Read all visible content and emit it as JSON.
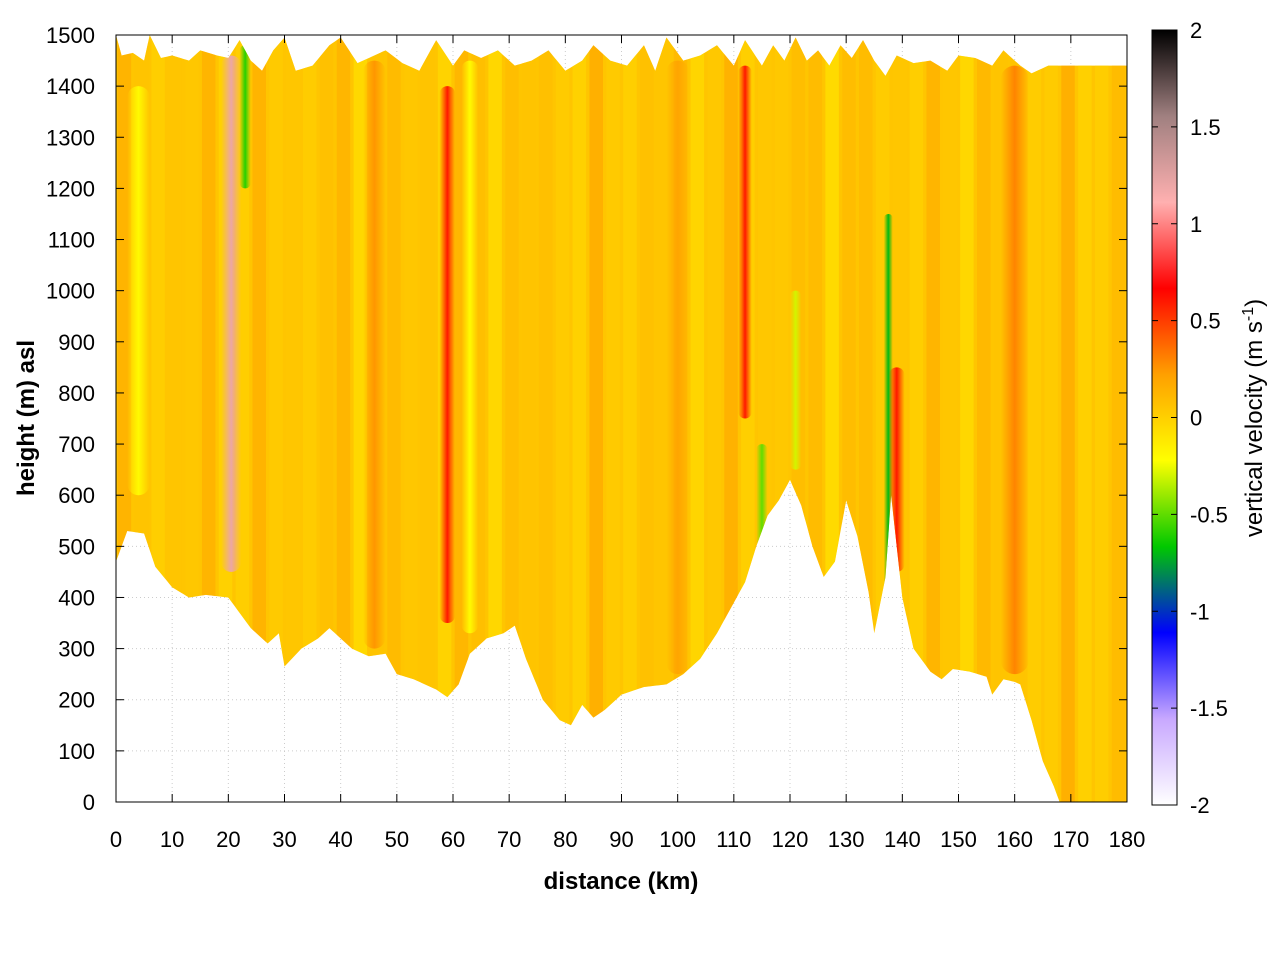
{
  "chart_data": {
    "type": "heatmap",
    "title": "",
    "xlabel": "distance (km)",
    "ylabel": "height (m) asl",
    "xlim": [
      0,
      180
    ],
    "ylim": [
      0,
      1500
    ],
    "xticks": [
      0,
      10,
      20,
      30,
      40,
      50,
      60,
      70,
      80,
      90,
      100,
      110,
      120,
      130,
      140,
      150,
      160,
      170,
      180
    ],
    "yticks": [
      0,
      100,
      200,
      300,
      400,
      500,
      600,
      700,
      800,
      900,
      1000,
      1100,
      1200,
      1300,
      1400,
      1500
    ],
    "grid": true,
    "colorbar": {
      "label_main": "vertical velocity (m s",
      "label_sup": "-1",
      "label_end": ")",
      "range": [
        -2,
        2
      ],
      "ticks": [
        -2,
        -1.5,
        -1,
        -0.5,
        0,
        0.5,
        1,
        1.5,
        2
      ],
      "colors": [
        "#ffffff",
        "#c8a8ff",
        "#0000ff",
        "#00c800",
        "#ffff00",
        "#ffa000",
        "#ff0000",
        "#ffb0b0",
        "#a08080",
        "#000000"
      ]
    },
    "terrain_height": [
      {
        "x": 0,
        "y": 470
      },
      {
        "x": 2,
        "y": 530
      },
      {
        "x": 5,
        "y": 525
      },
      {
        "x": 7,
        "y": 460
      },
      {
        "x": 10,
        "y": 420
      },
      {
        "x": 13,
        "y": 400
      },
      {
        "x": 16,
        "y": 405
      },
      {
        "x": 20,
        "y": 400
      },
      {
        "x": 24,
        "y": 340
      },
      {
        "x": 27,
        "y": 310
      },
      {
        "x": 29,
        "y": 330
      },
      {
        "x": 30,
        "y": 265
      },
      {
        "x": 33,
        "y": 300
      },
      {
        "x": 36,
        "y": 320
      },
      {
        "x": 38,
        "y": 340
      },
      {
        "x": 42,
        "y": 300
      },
      {
        "x": 45,
        "y": 285
      },
      {
        "x": 48,
        "y": 290
      },
      {
        "x": 50,
        "y": 250
      },
      {
        "x": 53,
        "y": 240
      },
      {
        "x": 57,
        "y": 220
      },
      {
        "x": 59,
        "y": 205
      },
      {
        "x": 61,
        "y": 230
      },
      {
        "x": 63,
        "y": 290
      },
      {
        "x": 66,
        "y": 320
      },
      {
        "x": 69,
        "y": 330
      },
      {
        "x": 71,
        "y": 345
      },
      {
        "x": 73,
        "y": 280
      },
      {
        "x": 76,
        "y": 200
      },
      {
        "x": 79,
        "y": 160
      },
      {
        "x": 81,
        "y": 150
      },
      {
        "x": 83,
        "y": 190
      },
      {
        "x": 85,
        "y": 165
      },
      {
        "x": 87,
        "y": 180
      },
      {
        "x": 90,
        "y": 210
      },
      {
        "x": 94,
        "y": 225
      },
      {
        "x": 98,
        "y": 230
      },
      {
        "x": 101,
        "y": 250
      },
      {
        "x": 104,
        "y": 280
      },
      {
        "x": 107,
        "y": 330
      },
      {
        "x": 110,
        "y": 390
      },
      {
        "x": 112,
        "y": 430
      },
      {
        "x": 114,
        "y": 500
      },
      {
        "x": 116,
        "y": 560
      },
      {
        "x": 118,
        "y": 590
      },
      {
        "x": 120,
        "y": 630
      },
      {
        "x": 122,
        "y": 580
      },
      {
        "x": 124,
        "y": 500
      },
      {
        "x": 126,
        "y": 440
      },
      {
        "x": 128,
        "y": 470
      },
      {
        "x": 130,
        "y": 590
      },
      {
        "x": 132,
        "y": 520
      },
      {
        "x": 134,
        "y": 410
      },
      {
        "x": 135,
        "y": 330
      },
      {
        "x": 137,
        "y": 440
      },
      {
        "x": 138,
        "y": 600
      },
      {
        "x": 140,
        "y": 400
      },
      {
        "x": 142,
        "y": 300
      },
      {
        "x": 145,
        "y": 255
      },
      {
        "x": 147,
        "y": 240
      },
      {
        "x": 149,
        "y": 260
      },
      {
        "x": 152,
        "y": 255
      },
      {
        "x": 155,
        "y": 245
      },
      {
        "x": 156,
        "y": 210
      },
      {
        "x": 158,
        "y": 240
      },
      {
        "x": 160,
        "y": 235
      },
      {
        "x": 161,
        "y": 230
      },
      {
        "x": 163,
        "y": 160
      },
      {
        "x": 165,
        "y": 80
      },
      {
        "x": 167,
        "y": 30
      },
      {
        "x": 168,
        "y": 0
      },
      {
        "x": 180,
        "y": 0
      }
    ],
    "top_height": [
      {
        "x": 0,
        "y": 1500
      },
      {
        "x": 1,
        "y": 1460
      },
      {
        "x": 3,
        "y": 1465
      },
      {
        "x": 5,
        "y": 1450
      },
      {
        "x": 6,
        "y": 1500
      },
      {
        "x": 8,
        "y": 1455
      },
      {
        "x": 10,
        "y": 1460
      },
      {
        "x": 13,
        "y": 1450
      },
      {
        "x": 15,
        "y": 1470
      },
      {
        "x": 18,
        "y": 1460
      },
      {
        "x": 20,
        "y": 1455
      },
      {
        "x": 22,
        "y": 1490
      },
      {
        "x": 24,
        "y": 1450
      },
      {
        "x": 26,
        "y": 1430
      },
      {
        "x": 28,
        "y": 1470
      },
      {
        "x": 30,
        "y": 1495
      },
      {
        "x": 32,
        "y": 1430
      },
      {
        "x": 35,
        "y": 1440
      },
      {
        "x": 38,
        "y": 1480
      },
      {
        "x": 40,
        "y": 1495
      },
      {
        "x": 43,
        "y": 1445
      },
      {
        "x": 46,
        "y": 1460
      },
      {
        "x": 48,
        "y": 1470
      },
      {
        "x": 51,
        "y": 1445
      },
      {
        "x": 54,
        "y": 1430
      },
      {
        "x": 57,
        "y": 1490
      },
      {
        "x": 60,
        "y": 1440
      },
      {
        "x": 62,
        "y": 1470
      },
      {
        "x": 65,
        "y": 1455
      },
      {
        "x": 68,
        "y": 1470
      },
      {
        "x": 71,
        "y": 1440
      },
      {
        "x": 74,
        "y": 1450
      },
      {
        "x": 77,
        "y": 1470
      },
      {
        "x": 80,
        "y": 1430
      },
      {
        "x": 83,
        "y": 1450
      },
      {
        "x": 85,
        "y": 1480
      },
      {
        "x": 88,
        "y": 1450
      },
      {
        "x": 91,
        "y": 1440
      },
      {
        "x": 94,
        "y": 1480
      },
      {
        "x": 96,
        "y": 1430
      },
      {
        "x": 98,
        "y": 1495
      },
      {
        "x": 101,
        "y": 1450
      },
      {
        "x": 104,
        "y": 1460
      },
      {
        "x": 107,
        "y": 1480
      },
      {
        "x": 110,
        "y": 1440
      },
      {
        "x": 112,
        "y": 1490
      },
      {
        "x": 115,
        "y": 1440
      },
      {
        "x": 117,
        "y": 1480
      },
      {
        "x": 119,
        "y": 1450
      },
      {
        "x": 121,
        "y": 1495
      },
      {
        "x": 123,
        "y": 1450
      },
      {
        "x": 125,
        "y": 1470
      },
      {
        "x": 127,
        "y": 1440
      },
      {
        "x": 129,
        "y": 1480
      },
      {
        "x": 131,
        "y": 1455
      },
      {
        "x": 133,
        "y": 1490
      },
      {
        "x": 135,
        "y": 1450
      },
      {
        "x": 137,
        "y": 1420
      },
      {
        "x": 139,
        "y": 1460
      },
      {
        "x": 142,
        "y": 1445
      },
      {
        "x": 145,
        "y": 1450
      },
      {
        "x": 148,
        "y": 1430
      },
      {
        "x": 150,
        "y": 1460
      },
      {
        "x": 153,
        "y": 1455
      },
      {
        "x": 156,
        "y": 1440
      },
      {
        "x": 158,
        "y": 1470
      },
      {
        "x": 161,
        "y": 1440
      },
      {
        "x": 163,
        "y": 1425
      },
      {
        "x": 166,
        "y": 1440
      },
      {
        "x": 180,
        "y": 1440
      }
    ],
    "features": [
      {
        "x": 20.5,
        "y_top": 1460,
        "y_bottom": 450,
        "value": 1.2,
        "width_km": 1.8
      },
      {
        "x": 23,
        "y_top": 1480,
        "y_bottom": 1200,
        "value": -0.6,
        "width_km": 1.0
      },
      {
        "x": 59,
        "y_top": 1400,
        "y_bottom": 350,
        "value": 0.6,
        "width_km": 1.4
      },
      {
        "x": 112,
        "y_top": 1440,
        "y_bottom": 750,
        "value": 0.6,
        "width_km": 1.2
      },
      {
        "x": 115,
        "y_top": 700,
        "y_bottom": 500,
        "value": -0.5,
        "width_km": 1.0
      },
      {
        "x": 121,
        "y_top": 1000,
        "y_bottom": 650,
        "value": -0.3,
        "width_km": 1.0
      },
      {
        "x": 137.5,
        "y_top": 1150,
        "y_bottom": 400,
        "value": -0.7,
        "width_km": 0.8
      },
      {
        "x": 139,
        "y_top": 850,
        "y_bottom": 450,
        "value": 0.6,
        "width_km": 1.4
      },
      {
        "x": 4,
        "y_top": 1400,
        "y_bottom": 600,
        "value": -0.2,
        "width_km": 2.0
      },
      {
        "x": 46,
        "y_top": 1450,
        "y_bottom": 300,
        "value": 0.25,
        "width_km": 2.0
      },
      {
        "x": 63,
        "y_top": 1450,
        "y_bottom": 330,
        "value": -0.2,
        "width_km": 1.5
      },
      {
        "x": 100,
        "y_top": 1450,
        "y_bottom": 250,
        "value": 0.2,
        "width_km": 2.0
      },
      {
        "x": 160,
        "y_top": 1440,
        "y_bottom": 250,
        "value": 0.3,
        "width_km": 2.5
      }
    ],
    "background_value": 0.05
  }
}
